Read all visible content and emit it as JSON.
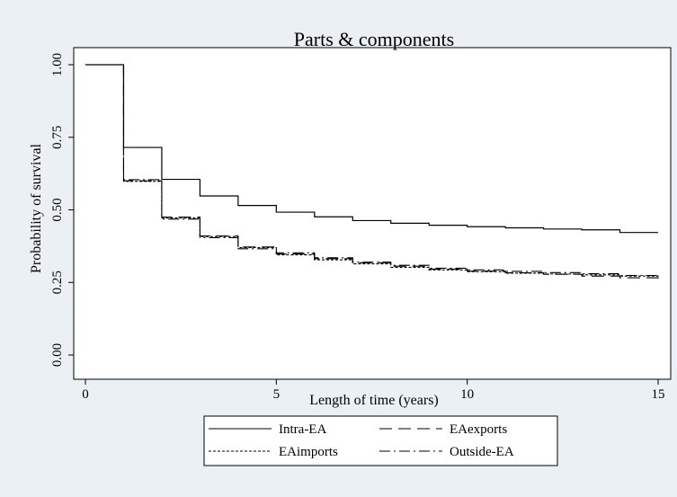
{
  "chart_data": {
    "type": "line",
    "title": "Parts & components",
    "xlabel": "Length of time (years)",
    "ylabel": "Probability of survival",
    "xlim": [
      0,
      15
    ],
    "ylim": [
      0,
      1
    ],
    "xticks": [
      "0",
      "5",
      "10",
      "15"
    ],
    "yticks": [
      "0.00",
      "0.25",
      "0.50",
      "0.75",
      "1.00"
    ],
    "grid": false,
    "legend_position": "bottom",
    "step": true,
    "x": [
      0,
      1,
      2,
      3,
      4,
      5,
      6,
      7,
      8,
      9,
      10,
      11,
      12,
      13,
      14,
      15
    ],
    "series": [
      {
        "name": "Intra-EA",
        "style": "solid",
        "values": [
          1.0,
          0.715,
          0.605,
          0.548,
          0.515,
          0.492,
          0.476,
          0.463,
          0.454,
          0.447,
          0.442,
          0.438,
          0.434,
          0.431,
          0.422,
          0.422
        ]
      },
      {
        "name": "EAexports",
        "style": "dashed",
        "values": [
          1.0,
          0.6,
          0.475,
          0.41,
          0.372,
          0.348,
          0.332,
          0.318,
          0.306,
          0.296,
          0.289,
          0.283,
          0.278,
          0.272,
          0.266,
          0.258
        ]
      },
      {
        "name": "EAimports",
        "style": "dotted",
        "values": [
          1.0,
          0.598,
          0.472,
          0.408,
          0.37,
          0.345,
          0.328,
          0.314,
          0.302,
          0.293,
          0.287,
          0.282,
          0.279,
          0.276,
          0.272,
          0.268
        ]
      },
      {
        "name": "Outside-EA",
        "style": "dashdot",
        "values": [
          1.0,
          0.604,
          0.468,
          0.404,
          0.366,
          0.352,
          0.335,
          0.32,
          0.309,
          0.299,
          0.293,
          0.288,
          0.284,
          0.28,
          0.274,
          0.268
        ]
      }
    ]
  }
}
